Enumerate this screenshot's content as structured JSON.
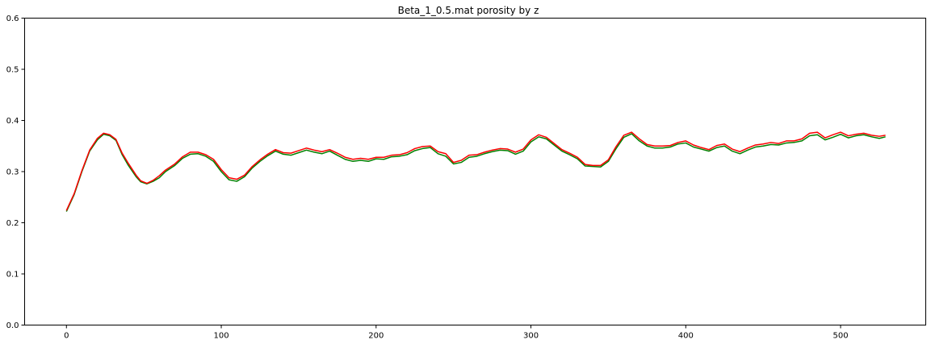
{
  "chart_data": {
    "type": "line",
    "title": "Beta_1_0.5.mat porosity by z",
    "xlabel": "",
    "ylabel": "",
    "xlim": [
      -27,
      555
    ],
    "ylim": [
      0.0,
      0.6
    ],
    "x_ticks": [
      0,
      100,
      200,
      300,
      400,
      500
    ],
    "y_ticks": [
      0.0,
      0.1,
      0.2,
      0.3,
      0.4,
      0.5,
      0.6
    ],
    "x_tick_labels": [
      "0",
      "100",
      "200",
      "300",
      "400",
      "500"
    ],
    "y_tick_labels": [
      "0.0",
      "0.1",
      "0.2",
      "0.3",
      "0.4",
      "0.5",
      "0.6"
    ],
    "grid": false,
    "legend": "none",
    "series": [
      {
        "color": "#008000",
        "points": [
          [
            0,
            0.222
          ],
          [
            5,
            0.255
          ],
          [
            10,
            0.3
          ],
          [
            15,
            0.34
          ],
          [
            20,
            0.362
          ],
          [
            24,
            0.373
          ],
          [
            28,
            0.37
          ],
          [
            32,
            0.361
          ],
          [
            36,
            0.333
          ],
          [
            40,
            0.312
          ],
          [
            45,
            0.29
          ],
          [
            48,
            0.28
          ],
          [
            52,
            0.276
          ],
          [
            56,
            0.281
          ],
          [
            60,
            0.288
          ],
          [
            64,
            0.3
          ],
          [
            70,
            0.312
          ],
          [
            75,
            0.326
          ],
          [
            80,
            0.334
          ],
          [
            85,
            0.335
          ],
          [
            90,
            0.33
          ],
          [
            95,
            0.32
          ],
          [
            100,
            0.3
          ],
          [
            105,
            0.284
          ],
          [
            110,
            0.281
          ],
          [
            115,
            0.29
          ],
          [
            120,
            0.307
          ],
          [
            125,
            0.32
          ],
          [
            130,
            0.331
          ],
          [
            135,
            0.34
          ],
          [
            140,
            0.334
          ],
          [
            145,
            0.332
          ],
          [
            150,
            0.337
          ],
          [
            155,
            0.342
          ],
          [
            160,
            0.338
          ],
          [
            165,
            0.335
          ],
          [
            170,
            0.34
          ],
          [
            175,
            0.332
          ],
          [
            180,
            0.324
          ],
          [
            185,
            0.32
          ],
          [
            190,
            0.322
          ],
          [
            195,
            0.32
          ],
          [
            200,
            0.325
          ],
          [
            205,
            0.324
          ],
          [
            210,
            0.329
          ],
          [
            215,
            0.33
          ],
          [
            220,
            0.333
          ],
          [
            225,
            0.341
          ],
          [
            230,
            0.345
          ],
          [
            235,
            0.347
          ],
          [
            240,
            0.335
          ],
          [
            245,
            0.33
          ],
          [
            250,
            0.315
          ],
          [
            255,
            0.318
          ],
          [
            260,
            0.328
          ],
          [
            265,
            0.33
          ],
          [
            270,
            0.335
          ],
          [
            275,
            0.339
          ],
          [
            280,
            0.342
          ],
          [
            285,
            0.341
          ],
          [
            290,
            0.334
          ],
          [
            295,
            0.34
          ],
          [
            300,
            0.358
          ],
          [
            305,
            0.368
          ],
          [
            310,
            0.364
          ],
          [
            315,
            0.352
          ],
          [
            320,
            0.34
          ],
          [
            325,
            0.333
          ],
          [
            330,
            0.325
          ],
          [
            335,
            0.311
          ],
          [
            340,
            0.31
          ],
          [
            345,
            0.309
          ],
          [
            350,
            0.32
          ],
          [
            355,
            0.345
          ],
          [
            360,
            0.367
          ],
          [
            365,
            0.374
          ],
          [
            370,
            0.36
          ],
          [
            375,
            0.35
          ],
          [
            380,
            0.346
          ],
          [
            385,
            0.346
          ],
          [
            390,
            0.348
          ],
          [
            395,
            0.354
          ],
          [
            400,
            0.356
          ],
          [
            405,
            0.348
          ],
          [
            410,
            0.344
          ],
          [
            415,
            0.34
          ],
          [
            420,
            0.347
          ],
          [
            425,
            0.35
          ],
          [
            430,
            0.34
          ],
          [
            435,
            0.335
          ],
          [
            440,
            0.342
          ],
          [
            445,
            0.348
          ],
          [
            450,
            0.35
          ],
          [
            455,
            0.353
          ],
          [
            460,
            0.352
          ],
          [
            465,
            0.356
          ],
          [
            470,
            0.357
          ],
          [
            475,
            0.36
          ],
          [
            480,
            0.37
          ],
          [
            485,
            0.372
          ],
          [
            490,
            0.362
          ],
          [
            495,
            0.367
          ],
          [
            500,
            0.373
          ],
          [
            505,
            0.366
          ],
          [
            510,
            0.37
          ],
          [
            515,
            0.372
          ],
          [
            520,
            0.368
          ],
          [
            525,
            0.365
          ],
          [
            529,
            0.368
          ]
        ]
      },
      {
        "color": "#ff0000",
        "points": [
          [
            0,
            0.224
          ],
          [
            5,
            0.257
          ],
          [
            10,
            0.302
          ],
          [
            15,
            0.342
          ],
          [
            20,
            0.365
          ],
          [
            24,
            0.375
          ],
          [
            28,
            0.372
          ],
          [
            32,
            0.363
          ],
          [
            36,
            0.336
          ],
          [
            40,
            0.316
          ],
          [
            45,
            0.293
          ],
          [
            48,
            0.282
          ],
          [
            52,
            0.277
          ],
          [
            56,
            0.283
          ],
          [
            60,
            0.292
          ],
          [
            64,
            0.303
          ],
          [
            70,
            0.315
          ],
          [
            75,
            0.329
          ],
          [
            80,
            0.338
          ],
          [
            85,
            0.338
          ],
          [
            90,
            0.333
          ],
          [
            95,
            0.324
          ],
          [
            100,
            0.304
          ],
          [
            105,
            0.288
          ],
          [
            110,
            0.285
          ],
          [
            115,
            0.293
          ],
          [
            120,
            0.31
          ],
          [
            125,
            0.323
          ],
          [
            130,
            0.334
          ],
          [
            135,
            0.343
          ],
          [
            140,
            0.337
          ],
          [
            145,
            0.336
          ],
          [
            150,
            0.341
          ],
          [
            155,
            0.346
          ],
          [
            160,
            0.342
          ],
          [
            165,
            0.339
          ],
          [
            170,
            0.343
          ],
          [
            175,
            0.336
          ],
          [
            180,
            0.328
          ],
          [
            185,
            0.324
          ],
          [
            190,
            0.326
          ],
          [
            195,
            0.324
          ],
          [
            200,
            0.328
          ],
          [
            205,
            0.328
          ],
          [
            210,
            0.332
          ],
          [
            215,
            0.333
          ],
          [
            220,
            0.337
          ],
          [
            225,
            0.345
          ],
          [
            230,
            0.349
          ],
          [
            235,
            0.35
          ],
          [
            240,
            0.339
          ],
          [
            245,
            0.335
          ],
          [
            250,
            0.318
          ],
          [
            255,
            0.322
          ],
          [
            260,
            0.332
          ],
          [
            265,
            0.333
          ],
          [
            270,
            0.338
          ],
          [
            275,
            0.342
          ],
          [
            280,
            0.345
          ],
          [
            285,
            0.344
          ],
          [
            290,
            0.338
          ],
          [
            295,
            0.344
          ],
          [
            300,
            0.362
          ],
          [
            305,
            0.372
          ],
          [
            310,
            0.367
          ],
          [
            315,
            0.355
          ],
          [
            320,
            0.343
          ],
          [
            325,
            0.336
          ],
          [
            330,
            0.328
          ],
          [
            335,
            0.314
          ],
          [
            340,
            0.312
          ],
          [
            345,
            0.312
          ],
          [
            350,
            0.323
          ],
          [
            355,
            0.349
          ],
          [
            360,
            0.371
          ],
          [
            365,
            0.377
          ],
          [
            370,
            0.364
          ],
          [
            375,
            0.353
          ],
          [
            380,
            0.35
          ],
          [
            385,
            0.35
          ],
          [
            390,
            0.351
          ],
          [
            395,
            0.357
          ],
          [
            400,
            0.36
          ],
          [
            405,
            0.352
          ],
          [
            410,
            0.347
          ],
          [
            415,
            0.343
          ],
          [
            420,
            0.351
          ],
          [
            425,
            0.354
          ],
          [
            430,
            0.344
          ],
          [
            435,
            0.339
          ],
          [
            440,
            0.346
          ],
          [
            445,
            0.352
          ],
          [
            450,
            0.354
          ],
          [
            455,
            0.357
          ],
          [
            460,
            0.355
          ],
          [
            465,
            0.36
          ],
          [
            470,
            0.36
          ],
          [
            475,
            0.364
          ],
          [
            480,
            0.375
          ],
          [
            485,
            0.377
          ],
          [
            490,
            0.366
          ],
          [
            495,
            0.372
          ],
          [
            500,
            0.377
          ],
          [
            505,
            0.37
          ],
          [
            510,
            0.373
          ],
          [
            515,
            0.375
          ],
          [
            520,
            0.371
          ],
          [
            525,
            0.369
          ],
          [
            529,
            0.371
          ]
        ]
      }
    ]
  }
}
